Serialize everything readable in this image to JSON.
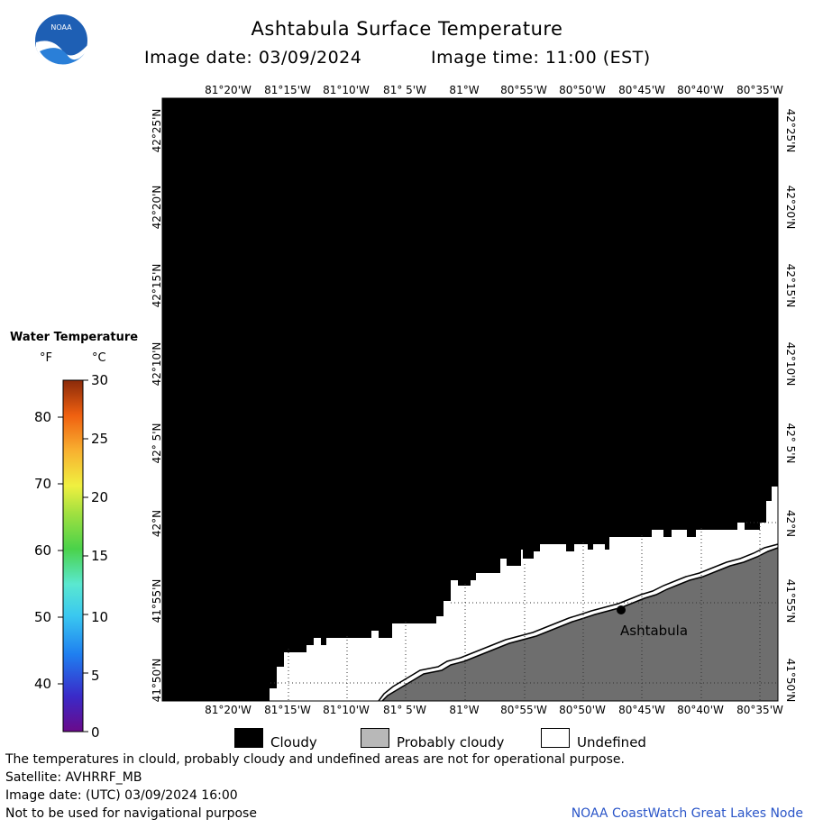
{
  "header": {
    "title": "Ashtabula Surface Temperature",
    "image_date": "Image date: 03/09/2024",
    "image_time": "Image time: 11:00 (EST)"
  },
  "logo": {
    "text": "NOAA"
  },
  "axes": {
    "longitude_labels": [
      "81°20'W",
      "81°15'W",
      "81°10'W",
      "81° 5'W",
      "81°W",
      "80°55'W",
      "80°50'W",
      "80°45'W",
      "80°40'W",
      "80°35'W"
    ],
    "latitude_labels": [
      "42°25'N",
      "42°20'N",
      "42°15'N",
      "42°10'N",
      "42° 5'N",
      "42°N",
      "41°55'N",
      "41°50'N"
    ]
  },
  "map": {
    "city_label": "Ashtabula",
    "colors": {
      "cloudy": "#000000",
      "probably_cloudy": "#6e6e6e",
      "undefined": "#ffffff",
      "shore": "#000000"
    }
  },
  "legend": {
    "title": "Water Temperature",
    "unit_f": "°F",
    "unit_c": "°C",
    "f_labels": [
      "80",
      "70",
      "60",
      "50",
      "40"
    ],
    "c_labels": [
      "30",
      "25",
      "20",
      "15",
      "10",
      "5",
      "0"
    ]
  },
  "key": {
    "cloudy": "Cloudy",
    "probably_cloudy": "Probably cloudy",
    "undefined": "Undefined"
  },
  "footer": {
    "line1": "The temperatures in clould, probably cloudy and undefined areas are not for operational purpose.",
    "line2": "Satellite: AVHRRF_MB",
    "line3": "Image date: (UTC) 03/09/2024  16:00",
    "line4": "Not to be used for navigational purpose",
    "credit": "NOAA CoastWatch Great Lakes Node"
  }
}
